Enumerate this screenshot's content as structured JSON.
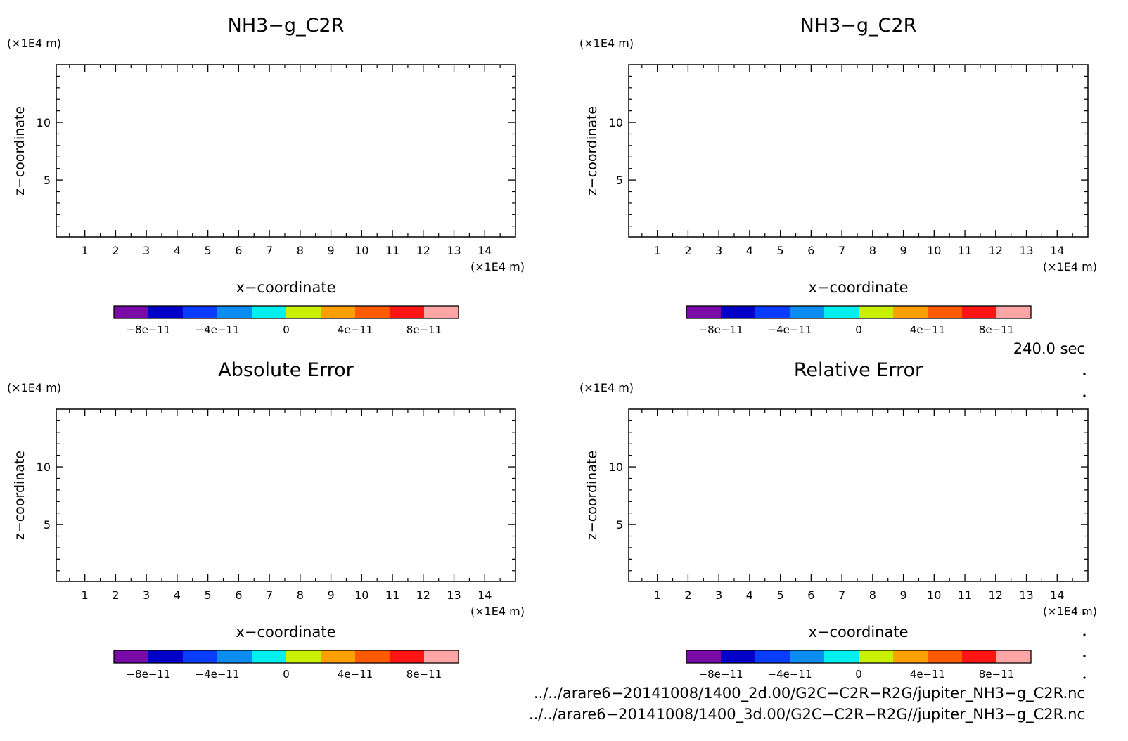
{
  "colors": [
    "#7a0aa8",
    "#0000c8",
    "#0a3cff",
    "#0a8cf0",
    "#00f0f0",
    "#c8f000",
    "#ffa000",
    "#ff5a00",
    "#ff1414",
    "#ffa5a5"
  ],
  "chart_data": [
    {
      "type": "heatmap",
      "title": "NH3−g_C2R",
      "xlabel": "x−coordinate",
      "ylabel": "z−coordinate",
      "x_unit": "(×1E4 m)",
      "y_unit": "(×1E4 m)",
      "xlim": [
        0.07,
        15
      ],
      "ylim": [
        0.07,
        15
      ],
      "xticks": [
        "1",
        "2",
        "3",
        "4",
        "5",
        "6",
        "7",
        "8",
        "9",
        "10",
        "11",
        "12",
        "13",
        "14"
      ],
      "yticks": [
        "5",
        "10"
      ],
      "colorbar": {
        "ticks": [
          "−8e−11",
          "−4e−11",
          "0",
          "4e−11",
          "8e−11"
        ],
        "range": [
          -1e-10,
          1e-10
        ]
      },
      "values": []
    },
    {
      "type": "heatmap",
      "title": "NH3−g_C2R",
      "xlabel": "x−coordinate",
      "ylabel": "z−coordinate",
      "x_unit": "(×1E4 m)",
      "y_unit": "(×1E4 m)",
      "xlim": [
        0.07,
        15
      ],
      "ylim": [
        0.07,
        15
      ],
      "xticks": [
        "1",
        "2",
        "3",
        "4",
        "5",
        "6",
        "7",
        "8",
        "9",
        "10",
        "11",
        "12",
        "13",
        "14"
      ],
      "yticks": [
        "5",
        "10"
      ],
      "colorbar": {
        "ticks": [
          "−8e−11",
          "−4e−11",
          "0",
          "4e−11",
          "8e−11"
        ],
        "range": [
          -1e-10,
          1e-10
        ]
      },
      "values": []
    },
    {
      "type": "heatmap",
      "title": "Absolute Error",
      "xlabel": "x−coordinate",
      "ylabel": "z−coordinate",
      "x_unit": "(×1E4 m)",
      "y_unit": "(×1E4 m)",
      "xlim": [
        0.07,
        15
      ],
      "ylim": [
        0.07,
        15
      ],
      "xticks": [
        "1",
        "2",
        "3",
        "4",
        "5",
        "6",
        "7",
        "8",
        "9",
        "10",
        "11",
        "12",
        "13",
        "14"
      ],
      "yticks": [
        "5",
        "10"
      ],
      "colorbar": {
        "ticks": [
          "−8e−11",
          "−4e−11",
          "0",
          "4e−11",
          "8e−11"
        ],
        "range": [
          -1e-10,
          1e-10
        ]
      },
      "values": []
    },
    {
      "type": "heatmap",
      "title": "Relative Error",
      "xlabel": "x−coordinate",
      "ylabel": "z−coordinate",
      "x_unit": "(×1E4 m)",
      "y_unit": "(×1E4 m)",
      "xlim": [
        0.07,
        15
      ],
      "ylim": [
        0.07,
        15
      ],
      "xticks": [
        "1",
        "2",
        "3",
        "4",
        "5",
        "6",
        "7",
        "8",
        "9",
        "10",
        "11",
        "12",
        "13",
        "14"
      ],
      "yticks": [
        "5",
        "10"
      ],
      "colorbar": {
        "ticks": [
          "−8e−11",
          "−4e−11",
          "0",
          "4e−11",
          "8e−11"
        ],
        "range": [
          -1e-10,
          1e-10
        ]
      },
      "values": []
    }
  ],
  "time_label": "240.0 sec",
  "footer": {
    "line1": "../../arare6−20141008/1400_2d.00/G2C−C2R−R2G/jupiter_NH3−g_C2R.nc",
    "line2": "../../arare6−20141008/1400_3d.00/G2C−C2R−R2G//jupiter_NH3−g_C2R.nc"
  }
}
